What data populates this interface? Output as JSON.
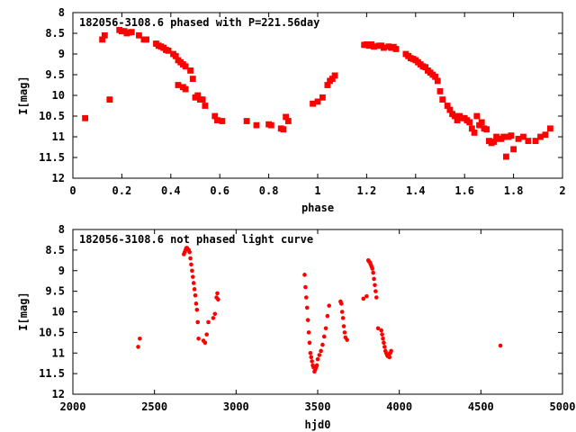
{
  "chart_data": [
    {
      "type": "scatter",
      "title": "182056-3108.6 phased with P=221.56day",
      "xlabel": "phase",
      "ylabel": "I[mag]",
      "xlim": [
        0,
        2
      ],
      "ylim": [
        12,
        8
      ],
      "y_inverted": true,
      "xticks": [
        0,
        0.2,
        0.4,
        0.6,
        0.8,
        1,
        1.2,
        1.4,
        1.6,
        1.8,
        2
      ],
      "xtick_labels": [
        "0",
        "0.2",
        "0.4",
        "0.6",
        "0.8",
        "1",
        "1.2",
        "1.4",
        "1.6",
        "1.8",
        "2"
      ],
      "yticks": [
        8,
        8.5,
        9,
        9.5,
        10,
        10.5,
        11,
        11.5,
        12
      ],
      "ytick_labels": [
        "8",
        "8.5",
        "9",
        "9.5",
        "10",
        "10.5",
        "11",
        "11.5",
        "12"
      ],
      "grid": false,
      "marker_color": "#ff0000",
      "x": [
        0.05,
        0.12,
        0.13,
        0.15,
        0.19,
        0.2,
        0.21,
        0.22,
        0.23,
        0.24,
        0.27,
        0.29,
        0.3,
        0.34,
        0.35,
        0.36,
        0.37,
        0.38,
        0.39,
        0.41,
        0.42,
        0.43,
        0.44,
        0.45,
        0.46,
        0.43,
        0.45,
        0.46,
        0.48,
        0.49,
        0.5,
        0.51,
        0.52,
        0.53,
        0.54,
        0.58,
        0.59,
        0.61,
        0.71,
        0.75,
        0.8,
        0.81,
        0.85,
        0.86,
        0.87,
        0.88,
        0.98,
        1.0,
        1.02,
        1.04,
        1.05,
        1.06,
        1.07,
        1.19,
        1.2,
        1.21,
        1.22,
        1.23,
        1.25,
        1.26,
        1.27,
        1.29,
        1.3,
        1.31,
        1.32,
        1.36,
        1.37,
        1.38,
        1.39,
        1.4,
        1.41,
        1.42,
        1.43,
        1.44,
        1.45,
        1.46,
        1.47,
        1.48,
        1.49,
        1.5,
        1.51,
        1.53,
        1.54,
        1.55,
        1.56,
        1.57,
        1.58,
        1.59,
        1.6,
        1.61,
        1.62,
        1.63,
        1.64,
        1.65,
        1.66,
        1.67,
        1.68,
        1.69,
        1.7,
        1.71,
        1.72,
        1.73,
        1.74,
        1.75,
        1.76,
        1.77,
        1.78,
        1.79,
        1.8,
        1.82,
        1.84,
        1.86,
        1.89,
        1.91,
        1.93,
        1.95
      ],
      "y": [
        10.55,
        8.65,
        8.55,
        10.1,
        8.42,
        8.45,
        8.45,
        8.5,
        8.48,
        8.47,
        8.55,
        8.65,
        8.65,
        8.75,
        8.8,
        8.82,
        8.85,
        8.9,
        8.92,
        9.0,
        9.05,
        9.15,
        9.2,
        9.25,
        9.3,
        9.75,
        9.8,
        9.85,
        9.4,
        9.6,
        10.05,
        10.0,
        10.1,
        10.1,
        10.25,
        10.5,
        10.6,
        10.62,
        10.62,
        10.72,
        10.7,
        10.72,
        10.8,
        10.82,
        10.52,
        10.62,
        10.2,
        10.15,
        10.05,
        9.75,
        9.65,
        9.6,
        9.52,
        8.78,
        8.77,
        8.8,
        8.77,
        8.82,
        8.8,
        8.8,
        8.85,
        8.82,
        8.85,
        8.83,
        8.88,
        9.0,
        9.05,
        9.1,
        9.12,
        9.15,
        9.2,
        9.25,
        9.3,
        9.32,
        9.4,
        9.45,
        9.5,
        9.55,
        9.65,
        9.9,
        10.1,
        10.25,
        10.35,
        10.45,
        10.5,
        10.6,
        10.5,
        10.55,
        10.55,
        10.6,
        10.65,
        10.8,
        10.9,
        10.5,
        10.72,
        10.65,
        10.8,
        10.82,
        11.1,
        11.15,
        11.12,
        11.0,
        11.05,
        11.05,
        11.0,
        11.48,
        11.0,
        10.97,
        11.3,
        11.05,
        11.0,
        11.1,
        11.1,
        11.0,
        10.95,
        10.8
      ]
    },
    {
      "type": "scatter",
      "title": "182056-3108.6 not phased light curve",
      "xlabel": "hjd0",
      "ylabel": "I[mag]",
      "xlim": [
        2000,
        5000
      ],
      "ylim": [
        12,
        8
      ],
      "y_inverted": true,
      "xticks": [
        2000,
        2500,
        3000,
        3500,
        4000,
        4500,
        5000
      ],
      "xtick_labels": [
        "2000",
        "2500",
        "3000",
        "3500",
        "4000",
        "4500",
        "5000"
      ],
      "yticks": [
        8,
        8.5,
        9,
        9.5,
        10,
        10.5,
        11,
        11.5,
        12
      ],
      "ytick_labels": [
        "8",
        "8.5",
        "9",
        "9.5",
        "10",
        "10.5",
        "11",
        "11.5",
        "12"
      ],
      "grid": false,
      "marker_color": "#ff0000",
      "x": [
        2400,
        2410,
        2680,
        2685,
        2690,
        2695,
        2700,
        2705,
        2710,
        2715,
        2720,
        2725,
        2730,
        2735,
        2740,
        2745,
        2750,
        2755,
        2760,
        2765,
        2770,
        2800,
        2810,
        2820,
        2830,
        2860,
        2870,
        2880,
        2885,
        2890,
        3420,
        3425,
        3430,
        3435,
        3440,
        3445,
        3450,
        3455,
        3460,
        3465,
        3470,
        3475,
        3480,
        3485,
        3490,
        3495,
        3500,
        3510,
        3520,
        3530,
        3540,
        3550,
        3560,
        3570,
        3640,
        3645,
        3650,
        3655,
        3660,
        3665,
        3670,
        3680,
        3780,
        3800,
        3810,
        3815,
        3820,
        3825,
        3830,
        3835,
        3840,
        3845,
        3850,
        3855,
        3860,
        3870,
        3890,
        3895,
        3900,
        3905,
        3910,
        3915,
        3920,
        3925,
        3930,
        3935,
        3940,
        3945,
        3950,
        4620
      ],
      "y": [
        10.85,
        10.65,
        8.6,
        8.55,
        8.5,
        8.45,
        8.45,
        8.48,
        8.5,
        8.55,
        8.7,
        8.85,
        9.0,
        9.15,
        9.3,
        9.45,
        9.6,
        9.8,
        9.95,
        10.25,
        10.65,
        10.7,
        10.75,
        10.55,
        10.25,
        10.15,
        10.05,
        9.65,
        9.55,
        9.7,
        9.1,
        9.4,
        9.65,
        9.9,
        10.2,
        10.5,
        10.75,
        11.0,
        11.1,
        11.2,
        11.3,
        11.35,
        11.45,
        11.4,
        11.35,
        11.3,
        11.15,
        11.05,
        10.95,
        10.8,
        10.6,
        10.4,
        10.1,
        9.85,
        9.75,
        9.8,
        10.0,
        10.15,
        10.35,
        10.5,
        10.62,
        10.68,
        9.68,
        9.62,
        8.75,
        8.78,
        8.8,
        8.85,
        8.9,
        8.95,
        9.05,
        9.2,
        9.35,
        9.5,
        9.65,
        10.4,
        10.45,
        10.55,
        10.65,
        10.75,
        10.85,
        10.95,
        11.0,
        11.05,
        11.08,
        11.05,
        11.1,
        11.0,
        10.95,
        10.82
      ]
    }
  ]
}
